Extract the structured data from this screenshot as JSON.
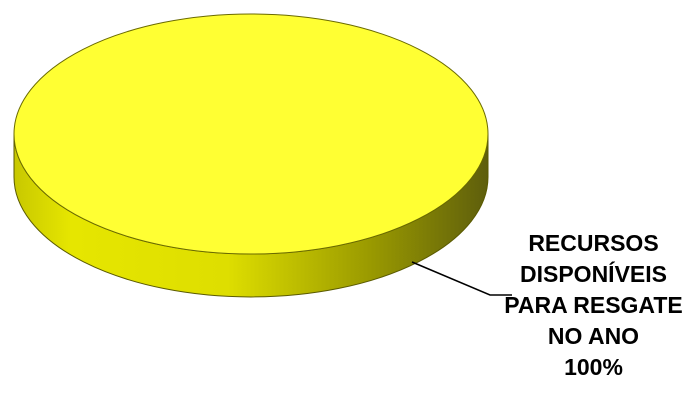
{
  "chart_data": {
    "type": "pie",
    "style": "3d",
    "slices": [
      {
        "label_lines": [
          "RECURSOS",
          "DISPONÍVEIS",
          "PARA RESGATE",
          "NO ANO"
        ],
        "value_text": "100%",
        "value": 100,
        "color": "#ffff33"
      }
    ],
    "title": "",
    "legend": "none"
  }
}
